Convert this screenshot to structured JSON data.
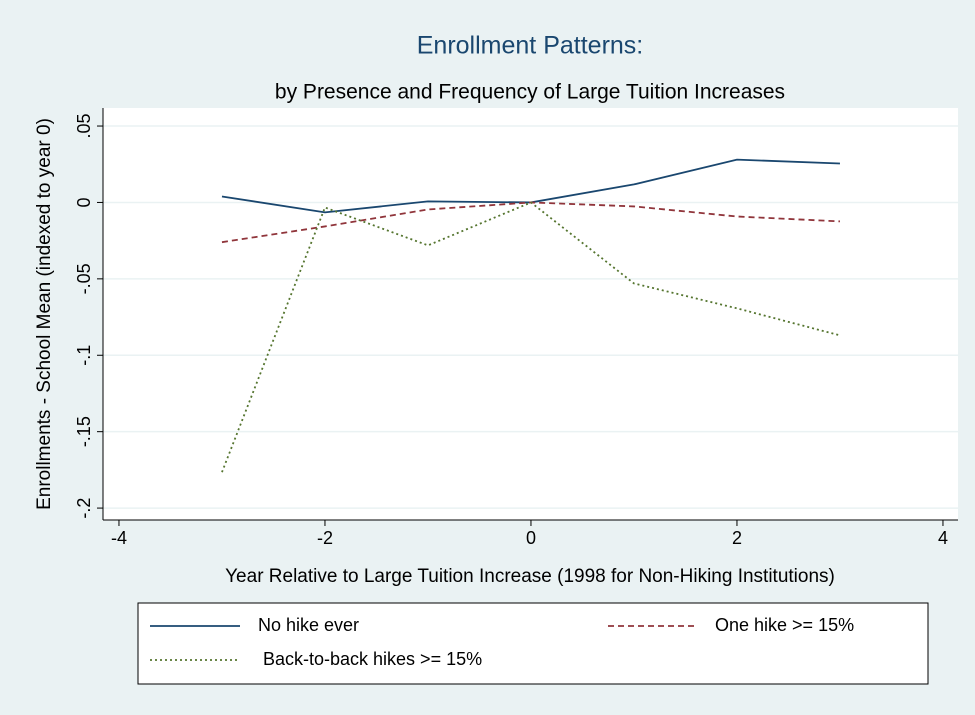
{
  "chart_data": {
    "type": "line",
    "title": "Enrollment Patterns:",
    "subtitle": "by Presence and Frequency of Large Tuition Increases",
    "x_label": "Year Relative to Large Tuition Increase (1998 for Non-Hiking Institutions)",
    "y_label": "Enrollments - School Mean (indexed to year 0)",
    "x": [
      -3,
      -2,
      -1,
      0,
      1,
      2,
      3
    ],
    "series": [
      {
        "name": "No hike ever",
        "color": "#1a476f",
        "dash": "solid",
        "values": [
          0.0039,
          -0.0065,
          0.0007,
          0,
          0.0118,
          0.028,
          0.0255
        ]
      },
      {
        "name": "One hike >= 15%",
        "color": "#90353b",
        "dash": "dash",
        "values": [
          -0.026,
          -0.0157,
          -0.0046,
          0,
          -0.0026,
          -0.0092,
          -0.0124
        ]
      },
      {
        "name": "Back-to-back hikes >= 15%",
        "color": "#55752f",
        "dash": "dot",
        "values": [
          -0.1765,
          -0.0033,
          -0.0281,
          0,
          -0.053,
          -0.0693,
          -0.087
        ]
      }
    ],
    "xlim": [
      -4.155,
      4.146
    ],
    "ylim": [
      -0.2078,
      0.0618
    ],
    "xticks": [
      -4,
      -2,
      0,
      2,
      4
    ],
    "yticks": [
      {
        "value": 0.05,
        "label": ".05"
      },
      0,
      {
        "value": -0.05,
        "label": "-.05"
      },
      {
        "value": -0.1,
        "label": "-.1"
      },
      {
        "value": -0.15,
        "label": "-.15"
      },
      {
        "value": -0.2,
        "label": "-.2"
      }
    ],
    "grid": true
  }
}
